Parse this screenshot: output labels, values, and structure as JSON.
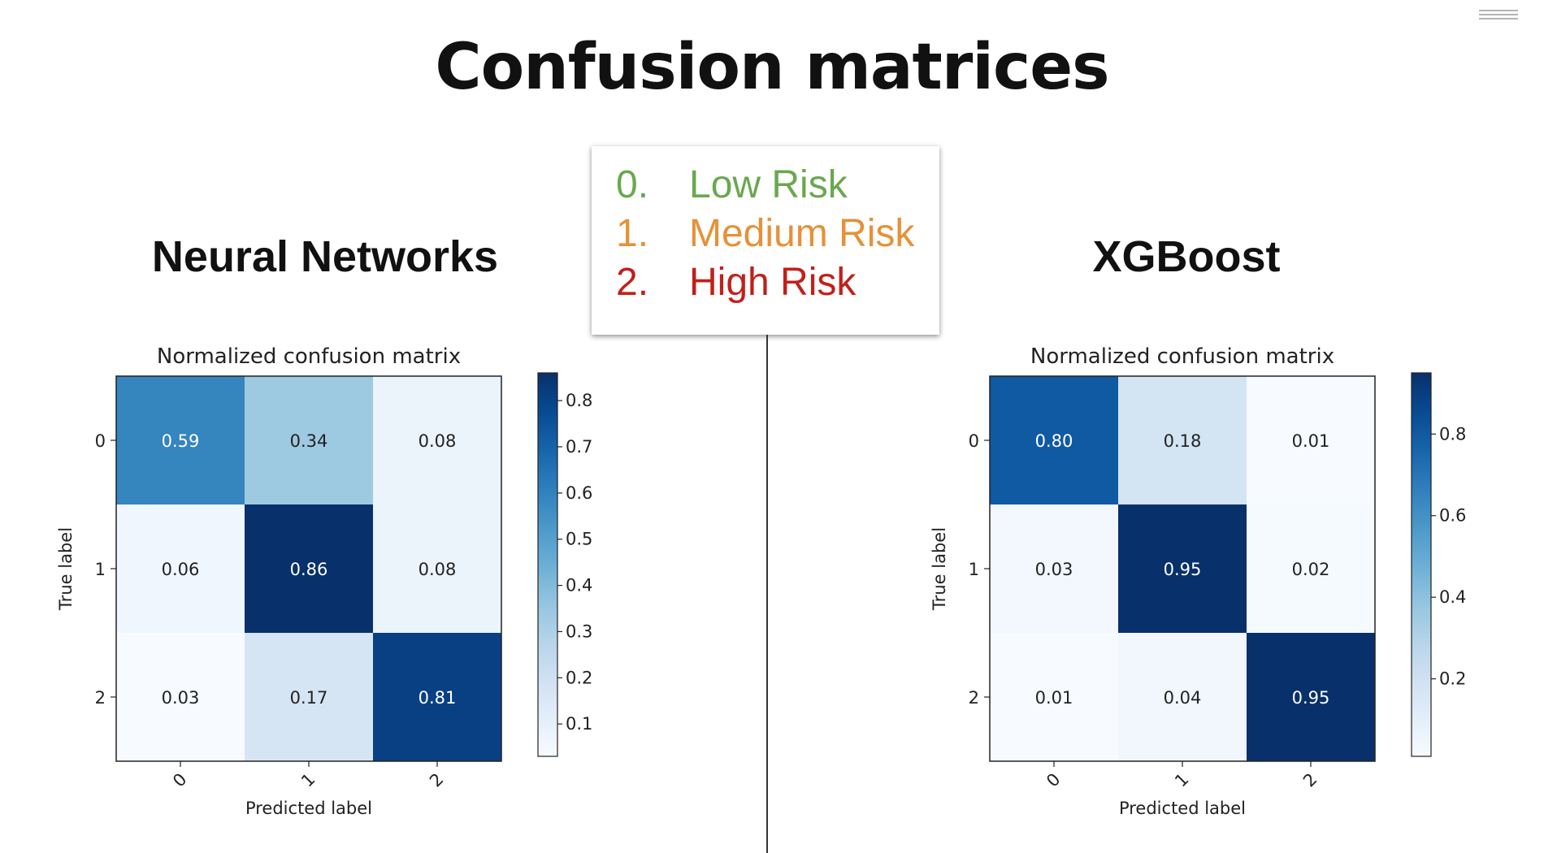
{
  "slide": {
    "title": "Confusion matrices"
  },
  "legend": {
    "items": [
      {
        "num": "0.",
        "label": "Low Risk",
        "color": "#6aa84f"
      },
      {
        "num": "1.",
        "label": "Medium Risk",
        "color": "#e69138"
      },
      {
        "num": "2.",
        "label": "High Risk",
        "color": "#c0201b"
      }
    ]
  },
  "sections": {
    "nn": {
      "title": "Neural Networks"
    },
    "xgb": {
      "title": "XGBoost"
    }
  },
  "chart_data": [
    {
      "type": "heatmap",
      "title": "Normalized confusion matrix",
      "xlabel": "Predicted label",
      "ylabel": "True label",
      "x_categories": [
        "0",
        "1",
        "2"
      ],
      "y_categories": [
        "0",
        "1",
        "2"
      ],
      "values": [
        [
          0.59,
          0.34,
          0.08
        ],
        [
          0.06,
          0.86,
          0.08
        ],
        [
          0.03,
          0.17,
          0.81
        ]
      ],
      "colorbar": {
        "min": 0.03,
        "max": 0.86,
        "ticks": [
          0.1,
          0.2,
          0.3,
          0.4,
          0.5,
          0.6,
          0.7,
          0.8
        ]
      },
      "colormap": "Blues"
    },
    {
      "type": "heatmap",
      "title": "Normalized confusion matrix",
      "xlabel": "Predicted label",
      "ylabel": "True label",
      "x_categories": [
        "0",
        "1",
        "2"
      ],
      "y_categories": [
        "0",
        "1",
        "2"
      ],
      "values": [
        [
          0.8,
          0.18,
          0.01
        ],
        [
          0.03,
          0.95,
          0.02
        ],
        [
          0.01,
          0.04,
          0.95
        ]
      ],
      "colorbar": {
        "min": 0.01,
        "max": 0.95,
        "ticks": [
          0.2,
          0.4,
          0.6,
          0.8
        ]
      },
      "colormap": "Blues"
    }
  ]
}
